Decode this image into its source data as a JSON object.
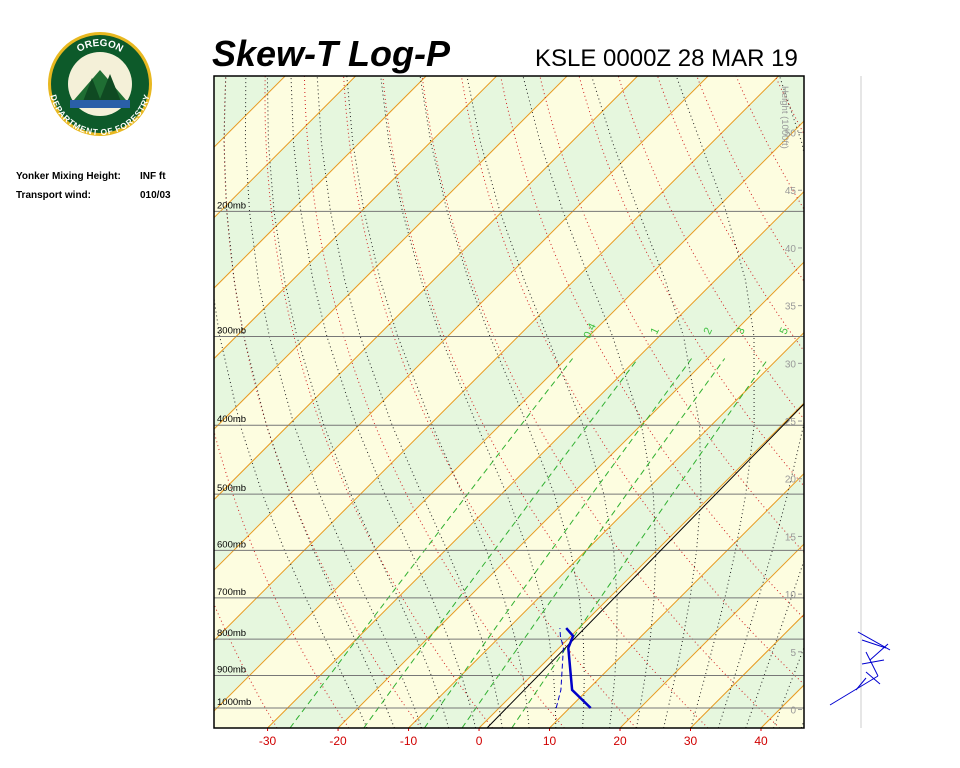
{
  "logo": {
    "top": "OREGON",
    "bottom": "DEPARTMENT OF FORESTRY"
  },
  "info": [
    {
      "label": "Yonker Mixing Height:",
      "value": "INF ft"
    },
    {
      "label": "Transport wind:",
      "value": "010/03"
    }
  ],
  "chart_data": {
    "type": "skew-t",
    "title": "Skew-T Log-P",
    "subtitle": "KSLE 0000Z 28 MAR 19",
    "ylim": [
      1067,
      129
    ],
    "log_scale": true,
    "yticks": [
      {
        "value": 200,
        "label": "200mb"
      },
      {
        "value": 300,
        "label": "300mb"
      },
      {
        "value": 400,
        "label": "400mb"
      },
      {
        "value": 500,
        "label": "500mb"
      },
      {
        "value": 600,
        "label": "600mb"
      },
      {
        "value": 700,
        "label": "700mb"
      },
      {
        "value": 800,
        "label": "800mb"
      },
      {
        "value": 900,
        "label": "900mb"
      },
      {
        "value": 1000,
        "label": "1000mb"
      }
    ],
    "xlim": [
      -37.6,
      46.1
    ],
    "xticks": [
      -30,
      -20,
      -10,
      0,
      10,
      20,
      30,
      40
    ],
    "y2_label": "Height (1000ft)",
    "y2lim": [
      -1.6,
      54.9
    ],
    "y2ticks": [
      0,
      5,
      10,
      15,
      20,
      25,
      30,
      35,
      40,
      45,
      50
    ],
    "mixing_ratios": [
      0.4,
      1,
      2,
      3,
      5
    ],
    "levels": [
      1000,
      943,
      823,
      792,
      772
    ],
    "temperature": {
      "color": "#0000c8",
      "values": [
        13,
        7.8,
        1.3,
        0.3,
        -1.8
      ]
    },
    "dewpoint": {
      "color": "#0000c8",
      "values": [
        8.1,
        6.2,
        0.6,
        -1.5,
        -2.7
      ]
    }
  }
}
